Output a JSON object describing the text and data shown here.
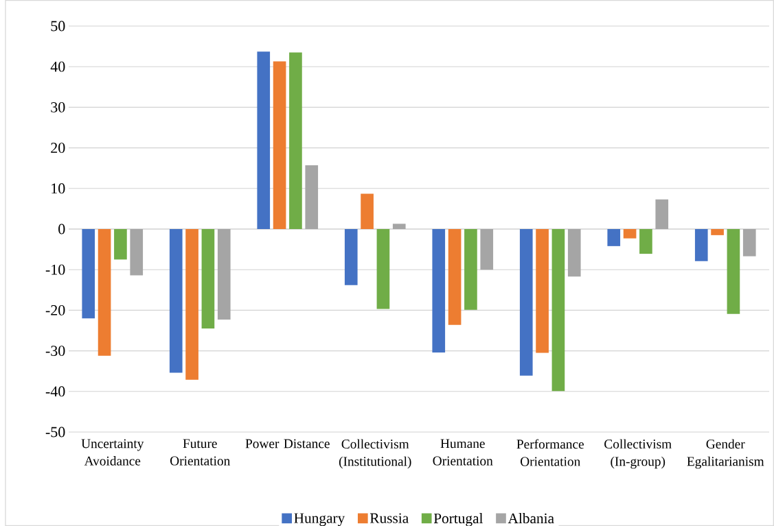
{
  "chart_data": {
    "type": "bar",
    "categories": [
      "Uncertainty Avoidance",
      "Future Orientation",
      "Power Distance",
      "Collectivism (Institutional)",
      "Humane Orientation",
      "Performance Orientation",
      "Collectivism (In-group)",
      "Gender Egalitarianism"
    ],
    "series": [
      {
        "name": "Hungary",
        "color": "#4472c4",
        "values": [
          -22.0,
          -35.4,
          43.7,
          -13.8,
          -30.4,
          -36.1,
          -4.2,
          -7.9
        ]
      },
      {
        "name": "Russia",
        "color": "#ed7d31",
        "values": [
          -31.2,
          -37.1,
          41.3,
          8.7,
          -23.6,
          -30.5,
          -2.3,
          -1.5
        ]
      },
      {
        "name": "Portugal",
        "color": "#70ad47",
        "values": [
          -7.5,
          -24.5,
          43.5,
          -19.7,
          -19.9,
          -39.9,
          -6.1,
          -20.9
        ]
      },
      {
        "name": "Albania",
        "color": "#a5a5a5",
        "values": [
          -11.4,
          -22.3,
          15.7,
          1.3,
          -10.0,
          -11.7,
          7.3,
          -6.7
        ]
      }
    ],
    "ylim": [
      -50,
      50
    ],
    "yticks": [
      -50,
      -40,
      -30,
      -20,
      -10,
      0,
      10,
      20,
      30,
      40,
      50
    ],
    "grid": "y",
    "legend": "bottom"
  }
}
